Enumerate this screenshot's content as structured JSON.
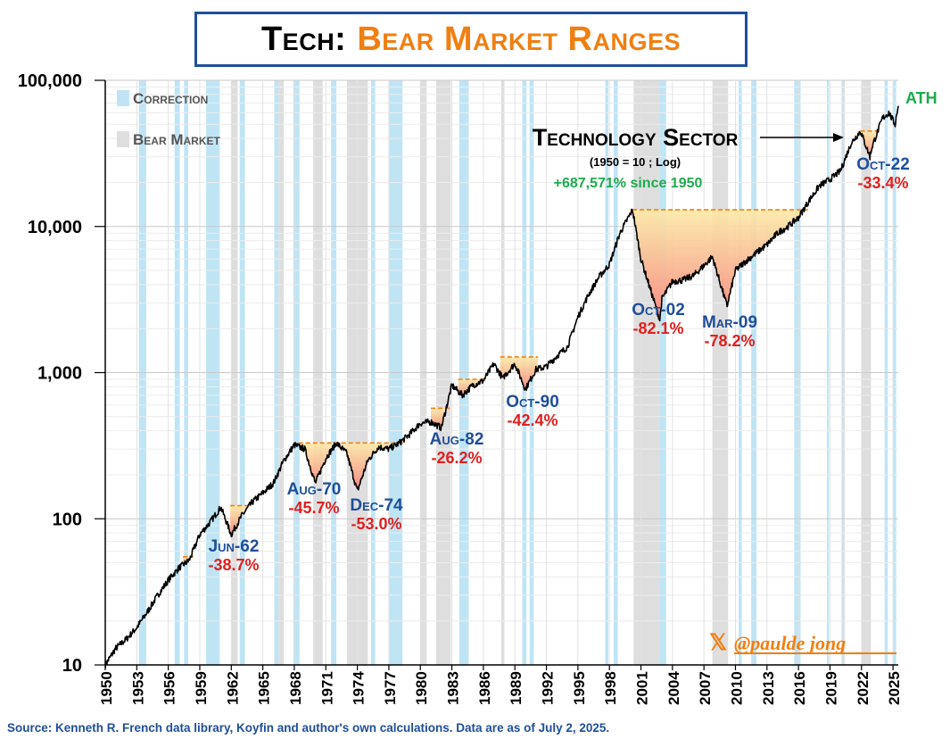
{
  "title": {
    "prefix": "Tech:",
    "main": "Bear Market Ranges"
  },
  "source": "Source: Kenneth R. French data library, Koyfin and author's own calculations. Data are as of July 2, 2025.",
  "handle": "@paulde jong",
  "colors": {
    "series": "#000000",
    "correction": "#bfe5f5",
    "bear": "#dedede",
    "drawdown_top": "#fde9a6",
    "drawdown_bottom": "#f7877f",
    "peak_line": "#f07f12",
    "title_box": "#1f4e9a",
    "name_color": "#1f4e9a",
    "pct_color": "#e02020",
    "gain_color": "#1eaa4e",
    "handle_color": "#f07f12"
  },
  "chart_data": {
    "type": "line",
    "yscale": "log",
    "ylim": [
      10,
      100000
    ],
    "xlim": [
      1950,
      2025.5
    ],
    "yticks": [
      10,
      100,
      1000,
      10000,
      100000
    ],
    "ytick_labels": [
      "10",
      "100",
      "1,000",
      "10,000",
      "100,000"
    ],
    "xticks": [
      1950,
      1953,
      1956,
      1959,
      1962,
      1965,
      1968,
      1971,
      1974,
      1977,
      1980,
      1983,
      1986,
      1989,
      1992,
      1995,
      1998,
      2001,
      2004,
      2007,
      2010,
      2013,
      2016,
      2019,
      2022,
      2025
    ],
    "grid": true,
    "legend": [
      {
        "label": "Correction",
        "key": "correction"
      },
      {
        "label": "Bear Market",
        "key": "bear"
      }
    ],
    "series": [
      {
        "name": "Technology Sector",
        "subtitle": "(1950 = 10 ; Log)",
        "gain_label": "+687,571% since 1950",
        "end_label": "ATH",
        "points": [
          [
            1950,
            10
          ],
          [
            1951,
            13
          ],
          [
            1952,
            15
          ],
          [
            1953,
            18
          ],
          [
            1954,
            23
          ],
          [
            1955,
            30
          ],
          [
            1956,
            38
          ],
          [
            1957,
            46
          ],
          [
            1958,
            52
          ],
          [
            1959,
            78
          ],
          [
            1960,
            95
          ],
          [
            1961,
            120
          ],
          [
            1962,
            78
          ],
          [
            1963,
            105
          ],
          [
            1964,
            130
          ],
          [
            1965,
            150
          ],
          [
            1966,
            175
          ],
          [
            1967,
            250
          ],
          [
            1968,
            320
          ],
          [
            1969,
            300
          ],
          [
            1970,
            175
          ],
          [
            1971,
            260
          ],
          [
            1972,
            330
          ],
          [
            1973,
            280
          ],
          [
            1974,
            155
          ],
          [
            1975,
            250
          ],
          [
            1976,
            310
          ],
          [
            1977,
            300
          ],
          [
            1978,
            330
          ],
          [
            1979,
            380
          ],
          [
            1980,
            450
          ],
          [
            1981,
            460
          ],
          [
            1982,
            420
          ],
          [
            1983,
            820
          ],
          [
            1984,
            700
          ],
          [
            1985,
            820
          ],
          [
            1986,
            880
          ],
          [
            1987,
            1150
          ],
          [
            1987.9,
            900
          ],
          [
            1988,
            950
          ],
          [
            1989,
            1150
          ],
          [
            1990,
            770
          ],
          [
            1991,
            1050
          ],
          [
            1992,
            1100
          ],
          [
            1993,
            1300
          ],
          [
            1994,
            1500
          ],
          [
            1995,
            2400
          ],
          [
            1996,
            3400
          ],
          [
            1997,
            4500
          ],
          [
            1998,
            5500
          ],
          [
            1999,
            9000
          ],
          [
            2000.2,
            13000
          ],
          [
            2001,
            6000
          ],
          [
            2002.8,
            2300
          ],
          [
            2003,
            3200
          ],
          [
            2004,
            4200
          ],
          [
            2005,
            4300
          ],
          [
            2006,
            4600
          ],
          [
            2007,
            5400
          ],
          [
            2007.8,
            6200
          ],
          [
            2009.2,
            2850
          ],
          [
            2010,
            5000
          ],
          [
            2011,
            5800
          ],
          [
            2012,
            6600
          ],
          [
            2013,
            7500
          ],
          [
            2014,
            9000
          ],
          [
            2015,
            10000
          ],
          [
            2016,
            11500
          ],
          [
            2017,
            15000
          ],
          [
            2018,
            19000
          ],
          [
            2019,
            21000
          ],
          [
            2020,
            24000
          ],
          [
            2021,
            37000
          ],
          [
            2021.9,
            45000
          ],
          [
            2022.8,
            30000
          ],
          [
            2023,
            35000
          ],
          [
            2024,
            55000
          ],
          [
            2024.6,
            60000
          ],
          [
            2025.2,
            50000
          ],
          [
            2025.5,
            68000
          ]
        ]
      }
    ],
    "correction_periods": [
      [
        1953.2,
        1953.9
      ],
      [
        1956.6,
        1957.1
      ],
      [
        1957.5,
        1957.9
      ],
      [
        1959.6,
        1960.9
      ],
      [
        1962.8,
        1963.3
      ],
      [
        1966.1,
        1966.5
      ],
      [
        1967.9,
        1968.5
      ],
      [
        1971.5,
        1972.0
      ],
      [
        1975.3,
        1975.7
      ],
      [
        1977.0,
        1978.3
      ],
      [
        1983.7,
        1984.6
      ],
      [
        1989.7,
        1990.1
      ],
      [
        1990.4,
        1990.8
      ],
      [
        1997.6,
        1997.9
      ],
      [
        1998.4,
        1998.8
      ],
      [
        2002.7,
        2003.4
      ],
      [
        2010.3,
        2010.6
      ],
      [
        2011.5,
        2012.0
      ],
      [
        2015.6,
        2016.2
      ],
      [
        2018.7,
        2018.9
      ],
      [
        2020.1,
        2020.3
      ],
      [
        2024.2,
        2024.5
      ],
      [
        2025.0,
        2025.3
      ]
    ],
    "bear_periods": [
      [
        1962.0,
        1962.6
      ],
      [
        1966.5,
        1967.0
      ],
      [
        1969.8,
        1970.7
      ],
      [
        1973.0,
        1975.0
      ],
      [
        1980.0,
        1980.6
      ],
      [
        1981.5,
        1982.9
      ],
      [
        1987.7,
        1988.0
      ],
      [
        2000.3,
        2002.8
      ],
      [
        2007.8,
        2009.3
      ],
      [
        2020.2,
        2020.4
      ],
      [
        2022.0,
        2022.9
      ]
    ],
    "drawdowns": [
      {
        "label": "Jun-62",
        "pct": "-38.7%",
        "start": 1961.9,
        "end": 1963.6,
        "peak": 123
      },
      {
        "label": "Aug-70",
        "pct": "-45.7%",
        "start": 1968.4,
        "end": 1978.6,
        "peak": 330
      },
      {
        "label": "Dec-74",
        "pct": "-53.0%",
        "start": 1968.4,
        "end": 1978.6,
        "peak": 330
      },
      {
        "label": "Aug-82",
        "pct": "-26.2%",
        "start": 1981.0,
        "end": 1983.0,
        "peak": 570
      },
      {
        "label": "Oct-90",
        "pct": "-42.4%",
        "start": 1987.6,
        "end": 1991.2,
        "peak": 1280
      },
      {
        "label": "Oct-02",
        "pct": "-82.1%",
        "start": 2000.2,
        "end": 2016.9,
        "peak": 13000
      },
      {
        "label": "Mar-09",
        "pct": "-78.2%",
        "start": 2000.2,
        "end": 2016.9,
        "peak": 13000
      },
      {
        "label": "Oct-22",
        "pct": "-33.4%",
        "start": 2021.9,
        "end": 2023.6,
        "peak": 45000
      }
    ],
    "small_drawdowns": [
      {
        "start": 1957.4,
        "end": 1958.4,
        "peak": 55
      },
      {
        "start": 1983.6,
        "end": 1986.2,
        "peak": 900
      }
    ]
  }
}
